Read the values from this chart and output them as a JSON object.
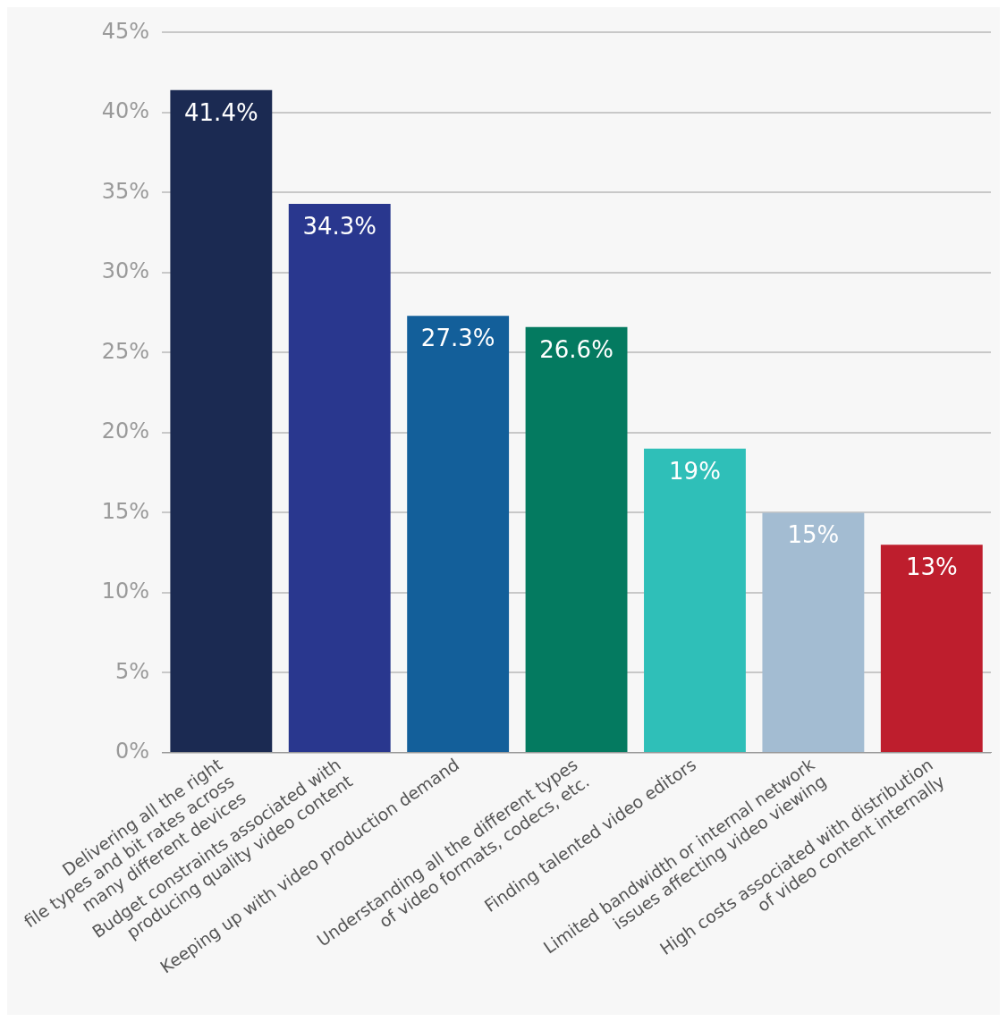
{
  "chart_data": {
    "type": "bar",
    "categories": [
      "Delivering all the right\nfile types and bit rates across\nmany different devices",
      "Budget constraints associated with\nproducing quality video content",
      "Keeping up with video production demand",
      "Understanding all the different types\nof video formats, codecs, etc.",
      "Finding talented video editors",
      "Limited bandwidth or internal network\nissues affecting video viewing",
      "High costs associated with distribution\nof video content internally"
    ],
    "values": [
      41.4,
      34.3,
      27.3,
      26.6,
      19,
      15,
      13
    ],
    "colors": [
      "#1b2a52",
      "#29378e",
      "#135f9a",
      "#047a60",
      "#2fbfb8",
      "#a3bcd2",
      "#be1e2d"
    ],
    "value_labels": [
      "41.4%",
      "34.3%",
      "27.3%",
      "26.6%",
      "19%",
      "15%",
      "13%"
    ],
    "ylim": [
      0,
      45
    ],
    "yticks": [
      {
        "value": 0,
        "label": "0%"
      },
      {
        "value": 5,
        "label": "5%"
      },
      {
        "value": 10,
        "label": "10%"
      },
      {
        "value": 15,
        "label": "15%"
      },
      {
        "value": 20,
        "label": "20%"
      },
      {
        "value": 25,
        "label": "25%"
      },
      {
        "value": 30,
        "label": "30%"
      },
      {
        "value": 35,
        "label": "35%"
      },
      {
        "value": 40,
        "label": "40%"
      },
      {
        "value": 45,
        "label": "45%"
      }
    ],
    "grid": "y",
    "legend": false
  }
}
